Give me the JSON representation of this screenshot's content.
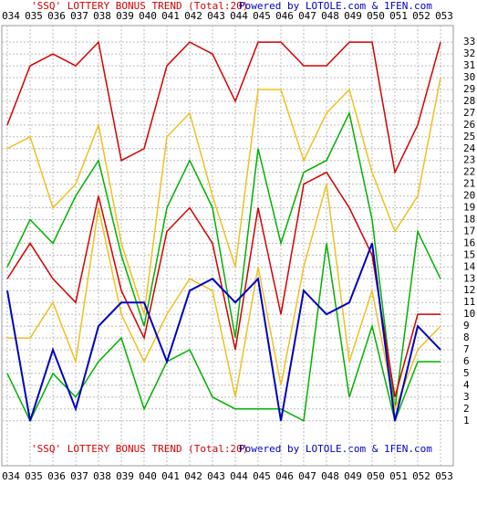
{
  "chart_data": {
    "type": "line",
    "title": "'SSQ' LOTTERY BONUS TREND (Total:20)",
    "subtitle": "Powered by LOTOLE.com & 1FEN.com",
    "categories": [
      "034",
      "035",
      "036",
      "037",
      "038",
      "039",
      "040",
      "041",
      "042",
      "043",
      "044",
      "045",
      "046",
      "047",
      "048",
      "049",
      "050",
      "051",
      "052",
      "053"
    ],
    "ylim": [
      -2.8,
      34.4
    ],
    "yticks": [
      1,
      2,
      3,
      4,
      5,
      6,
      7,
      8,
      9,
      10,
      11,
      12,
      13,
      14,
      15,
      16,
      17,
      18,
      19,
      20,
      21,
      22,
      23,
      24,
      25,
      26,
      27,
      28,
      29,
      30,
      31,
      32,
      33
    ],
    "grid": true,
    "series": [
      {
        "color": "#d40000",
        "values": [
          26,
          31,
          32,
          31,
          33,
          23,
          24,
          31,
          33,
          32,
          28,
          33,
          33,
          31,
          31,
          33,
          33,
          22,
          26,
          33
        ]
      },
      {
        "color": "#f0c020",
        "values": [
          24,
          25,
          19,
          21,
          26,
          16,
          10,
          25,
          27,
          20,
          14,
          29,
          29,
          23,
          27,
          29,
          22,
          17,
          20,
          30
        ]
      },
      {
        "color": "#00b000",
        "values": [
          14,
          18,
          16,
          20,
          23,
          15,
          9,
          19,
          23,
          19,
          8,
          24,
          16,
          22,
          23,
          27,
          18,
          2,
          17,
          13
        ]
      },
      {
        "color": "#d40000",
        "values": [
          13,
          16,
          13,
          11,
          20,
          12,
          8,
          17,
          19,
          16,
          7,
          19,
          10,
          21,
          22,
          19,
          15,
          3,
          10,
          10
        ]
      },
      {
        "color": "#f0c020",
        "values": [
          8,
          8,
          11,
          6,
          19,
          10,
          6,
          10,
          13,
          12,
          3,
          14,
          4,
          14,
          21,
          6,
          12,
          2,
          7,
          9
        ]
      },
      {
        "color": "#00b000",
        "values": [
          5,
          1,
          5,
          3,
          6,
          8,
          2,
          6,
          7,
          3,
          2,
          2,
          2,
          1,
          16,
          3,
          9,
          1,
          6,
          6
        ]
      },
      {
        "color": "#0000c0",
        "values": [
          12,
          1,
          7,
          2,
          9,
          11,
          11,
          6,
          12,
          13,
          11,
          13,
          1,
          12,
          10,
          11,
          16,
          1,
          9,
          7
        ]
      }
    ]
  }
}
